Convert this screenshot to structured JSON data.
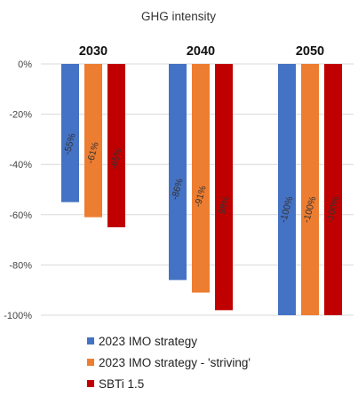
{
  "chart_data": {
    "type": "bar",
    "title": "GHG intensity",
    "categories": [
      "2030",
      "2040",
      "2050"
    ],
    "series": [
      {
        "name": "2023 IMO strategy",
        "color": "#4472c4",
        "values": [
          -55,
          -86,
          -100
        ],
        "labels": [
          "-55%",
          "-86%",
          "-100%"
        ]
      },
      {
        "name": "2023 IMO strategy - 'striving'",
        "color": "#ed7d31",
        "values": [
          -61,
          -91,
          -100
        ],
        "labels": [
          "-61%",
          "-91%",
          "-100%"
        ]
      },
      {
        "name": "SBTi 1.5",
        "color": "#c00000",
        "values": [
          -65,
          -98,
          -100
        ],
        "labels": [
          "-65%",
          "-98%",
          "-100%"
        ]
      }
    ],
    "yticks": [
      0,
      -20,
      -40,
      -60,
      -80,
      -100
    ],
    "ytick_labels": [
      "0%",
      "-20%",
      "-40%",
      "-60%",
      "-80%",
      "-100%"
    ],
    "ylim": [
      -100,
      0
    ],
    "grid": true,
    "legend_position": "bottom"
  }
}
